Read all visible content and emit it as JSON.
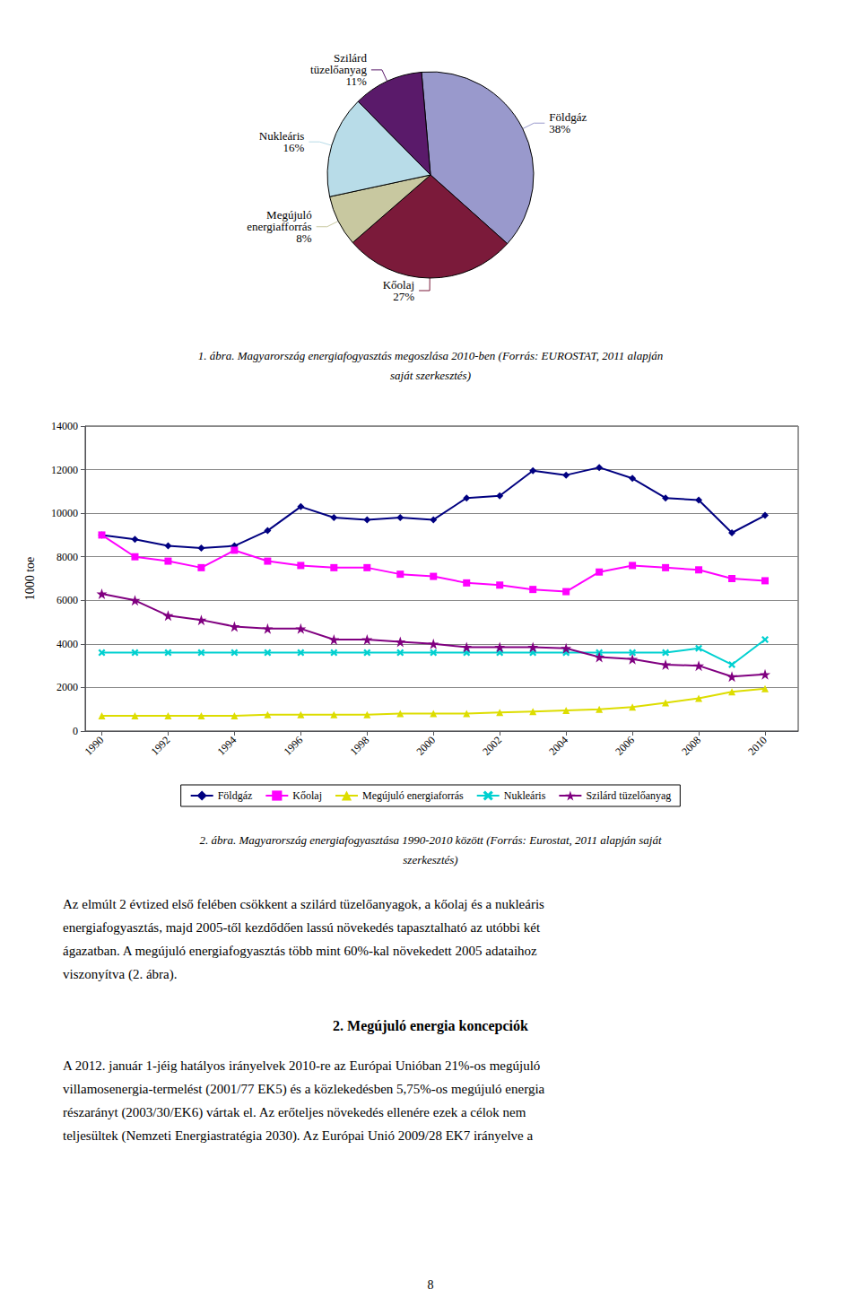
{
  "chart_data": [
    {
      "type": "pie",
      "categories": [
        "Földgáz",
        "Kőolaj",
        "Megújuló\nenergiafforrás",
        "Nukleáris",
        "Szilárd\ntüzelőanyag"
      ],
      "values": [
        38,
        27,
        8,
        16,
        11
      ],
      "value_labels": [
        "38%",
        "27%",
        "8%",
        "16%",
        "11%"
      ],
      "colors": [
        "#9999cc",
        "#7b1a3a",
        "#c8c8a0",
        "#b8dce8",
        "#5a1a6a"
      ],
      "data_labels": true,
      "annotations": [
        "1. ábra. Magyarország energiafogyasztás megoszlása 2010-ben (Forrás: EUROSTAT, 2011 alapján",
        "saját szerkesztés)"
      ]
    },
    {
      "type": "line",
      "x": [
        1990,
        1991,
        1992,
        1993,
        1994,
        1995,
        1996,
        1997,
        1998,
        1999,
        2000,
        2001,
        2002,
        2003,
        2004,
        2005,
        2006,
        2007,
        2008,
        2009,
        2010
      ],
      "xlim": [
        1989.5,
        2011
      ],
      "xticks": [
        1990,
        1992,
        1994,
        1996,
        1998,
        2000,
        2002,
        2004,
        2006,
        2008,
        2010
      ],
      "ylim": [
        0,
        14000
      ],
      "yticks": [
        0,
        2000,
        4000,
        6000,
        8000,
        10000,
        12000,
        14000
      ],
      "ylabel": "1000 toe",
      "grid": true,
      "legend": "bottom",
      "series": [
        {
          "name": "Földgáz",
          "color": "#000080",
          "marker": "diamond",
          "values": [
            9000,
            8800,
            8500,
            8400,
            8500,
            9200,
            10300,
            9800,
            9700,
            9800,
            9700,
            10700,
            10800,
            11950,
            11750,
            12100,
            11600,
            10700,
            10600,
            9100,
            9900
          ]
        },
        {
          "name": "Kőolaj",
          "color": "#ff00ff",
          "marker": "square",
          "values": [
            9000,
            8000,
            7800,
            7500,
            8300,
            7800,
            7600,
            7500,
            7500,
            7200,
            7100,
            6800,
            6700,
            6500,
            6400,
            7300,
            7600,
            7500,
            7400,
            7000,
            6900
          ]
        },
        {
          "name": "Megújuló energiaforrás",
          "color": "#dddd00",
          "marker": "triangle",
          "values": [
            700,
            700,
            700,
            700,
            700,
            750,
            750,
            750,
            750,
            800,
            800,
            800,
            850,
            900,
            950,
            1000,
            1100,
            1300,
            1500,
            1800,
            1950
          ]
        },
        {
          "name": "Nukleáris",
          "color": "#00d0d0",
          "marker": "x",
          "values": [
            3600,
            3600,
            3600,
            3600,
            3600,
            3600,
            3600,
            3600,
            3600,
            3600,
            3600,
            3600,
            3600,
            3600,
            3600,
            3600,
            3600,
            3600,
            3800,
            3050,
            4200
          ]
        },
        {
          "name": "Szilárd tüzelőanyag",
          "color": "#800080",
          "marker": "star",
          "values": [
            6300,
            6000,
            5300,
            5100,
            4800,
            4700,
            4700,
            4200,
            4200,
            4100,
            4000,
            3850,
            3850,
            3850,
            3800,
            3400,
            3300,
            3050,
            3000,
            2500,
            2600
          ]
        }
      ],
      "annotations": [
        "2. ábra. Magyarország energiafogyasztása 1990-2010 között (Forrás: Eurostat, 2011 alapján saját",
        "szerkesztés)",
        "Az elmúlt 2 évtized első felében csökkent a szilárd tüzelőanyagok, a kőolaj és a nukleáris",
        "energiafogyasztás, majd 2005-től kezdődően lassú növekedés tapasztalható az utóbbi két",
        "ágazatban. A megújuló energiafogyasztás több mint 60%-kal növekedett 2005 adataihoz",
        "viszonyítva (2. ábra).",
        "2. Megújuló energia koncepciók",
        "A 2012. január 1-jéig hatályos irányelvek 2010-re az Európai Unióban 21%-os megújuló",
        "villamosenergia-termelést (2001/77 EK5) és a közlekedésben 5,75%-os megújuló energia",
        "részarányt (2003/30/EK6) vártak el. Az erőteljes növekedés ellenére ezek a célok nem",
        "teljesültek (Nemzeti Energiastratégia 2030). Az Európai Unió 2009/28 EK7 irányelve a",
        "8"
      ]
    }
  ]
}
